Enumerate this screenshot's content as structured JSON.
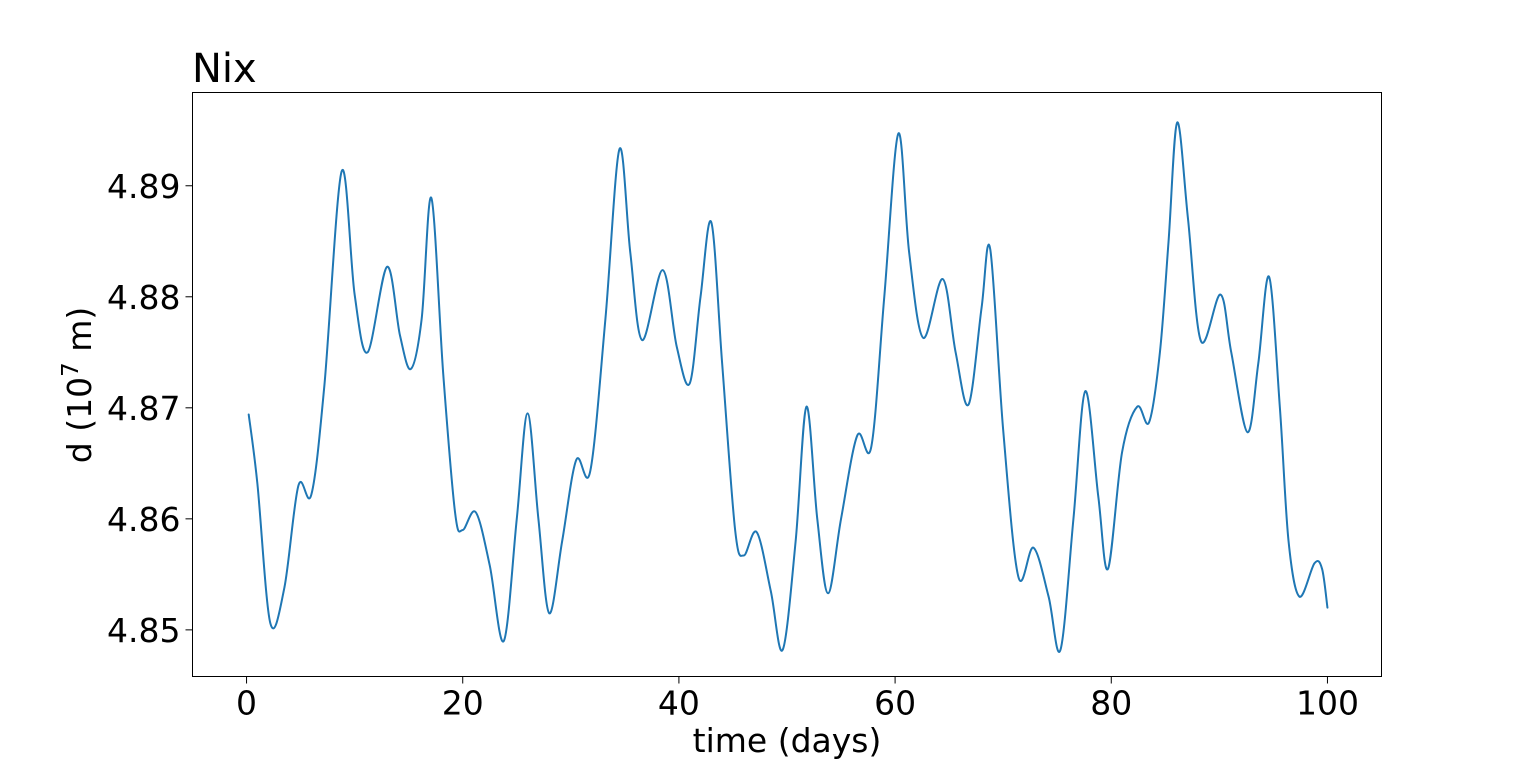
{
  "chart_data": {
    "type": "line",
    "title": "Nix",
    "xlabel": "time (days)",
    "ylabel_prefix": "d (10",
    "ylabel_exponent": "7",
    "ylabel_suffix": " m)",
    "xlim": [
      -5,
      105
    ],
    "ylim": [
      4.8458,
      4.8984
    ],
    "x_ticks": [
      0,
      20,
      40,
      60,
      80,
      100
    ],
    "x_tick_labels": [
      "0",
      "20",
      "40",
      "60",
      "80",
      "100"
    ],
    "y_ticks": [
      4.85,
      4.86,
      4.87,
      4.88,
      4.89
    ],
    "y_tick_labels": [
      "4.85",
      "4.86",
      "4.87",
      "4.88",
      "4.89"
    ],
    "grid": false,
    "line_color": "#1f77b4",
    "series": [
      {
        "x": [
          0.2,
          1.0,
          2.2,
          3.5,
          4.8,
          6.0,
          7.2,
          8.8,
          10.0,
          11.2,
          13.0,
          14.2,
          15.2,
          16.2,
          17.1,
          18.2,
          19.3,
          20.0,
          21.2,
          22.5,
          23.8,
          25.0,
          26.0,
          27.0,
          28.0,
          29.2,
          30.5,
          31.8,
          33.2,
          34.5,
          35.5,
          36.6,
          38.5,
          39.8,
          41.0,
          42.0,
          43.0,
          44.0,
          45.2,
          46.0,
          47.2,
          48.5,
          49.6,
          50.8,
          51.8,
          52.8,
          53.8,
          55.0,
          56.5,
          57.8,
          59.0,
          60.3,
          61.3,
          62.6,
          64.4,
          65.6,
          66.8,
          68.0,
          68.8,
          70.0,
          71.4,
          72.8,
          74.2,
          75.3,
          76.5,
          77.6,
          78.8,
          79.7,
          81.0,
          82.4,
          83.5,
          84.5,
          85.3,
          86.1,
          87.1,
          88.3,
          90.1,
          91.1,
          92.6,
          93.6,
          94.6,
          95.6,
          96.4,
          97.4,
          98.8,
          99.5,
          100.0
        ],
        "y": [
          4.8694,
          4.8632,
          4.8506,
          4.8538,
          4.863,
          4.8622,
          4.872,
          4.8913,
          4.8802,
          4.875,
          4.8827,
          4.8765,
          4.8735,
          4.878,
          4.8889,
          4.873,
          4.8605,
          4.859,
          4.8606,
          4.8558,
          4.849,
          4.86,
          4.8695,
          4.86,
          4.8515,
          4.858,
          4.8653,
          4.8643,
          4.878,
          4.8933,
          4.884,
          4.8761,
          4.8824,
          4.8755,
          4.8722,
          4.88,
          4.8867,
          4.874,
          4.859,
          4.8567,
          4.8588,
          4.8535,
          4.8482,
          4.858,
          4.8701,
          4.86,
          4.8533,
          4.86,
          4.8675,
          4.8665,
          4.88,
          4.8947,
          4.884,
          4.8763,
          4.8816,
          4.875,
          4.8703,
          4.879,
          4.8843,
          4.868,
          4.8548,
          4.8574,
          4.853,
          4.8482,
          4.86,
          4.8715,
          4.862,
          4.8555,
          4.866,
          4.8701,
          4.8687,
          4.875,
          4.885,
          4.8957,
          4.887,
          4.876,
          4.8802,
          4.875,
          4.8678,
          4.874,
          4.8818,
          4.87,
          4.858,
          4.853,
          4.856,
          4.8555,
          4.852
        ]
      }
    ]
  }
}
